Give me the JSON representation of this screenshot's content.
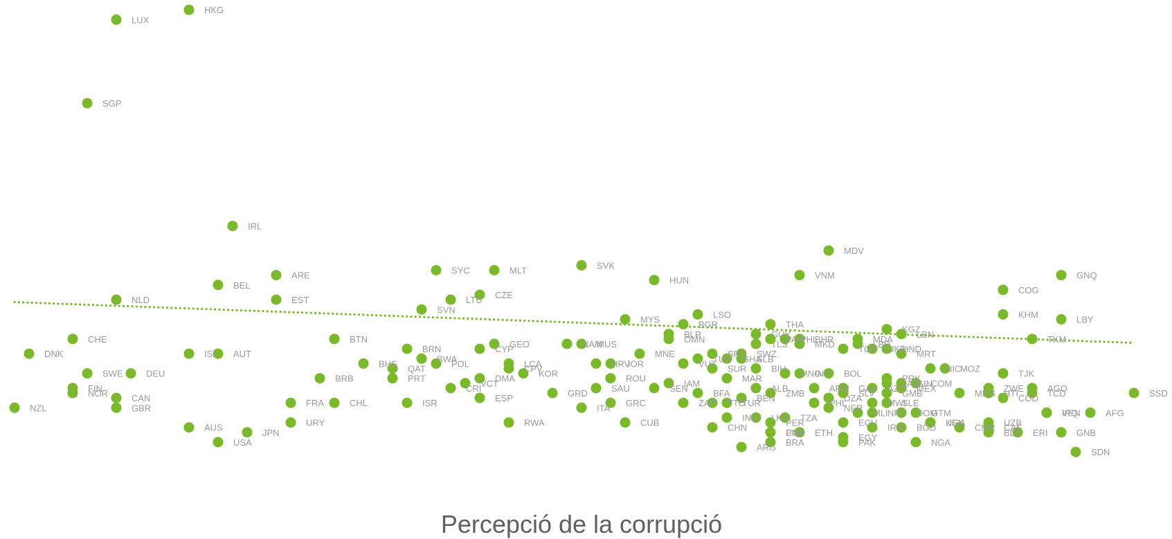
{
  "chart_data": {
    "type": "scatter",
    "xlabel": "Percepció de la corrupció",
    "x_range": [
      0,
      80
    ],
    "y_range": [
      0,
      100
    ],
    "colors": {
      "point": "#7ab929",
      "label": "#9a9a9a",
      "trend": "#7ab929",
      "axis_title": "#606060"
    },
    "trendline": {
      "style": "dotted",
      "from": [
        1,
        38.5
      ],
      "to": [
        78,
        30.2
      ]
    },
    "points": [
      {
        "code": "HKG",
        "x": 13,
        "y": 98
      },
      {
        "code": "LUX",
        "x": 8,
        "y": 96
      },
      {
        "code": "SGP",
        "x": 6,
        "y": 79
      },
      {
        "code": "IRL",
        "x": 16,
        "y": 54
      },
      {
        "code": "MDV",
        "x": 57,
        "y": 49
      },
      {
        "code": "ARE",
        "x": 19,
        "y": 44
      },
      {
        "code": "BEL",
        "x": 15,
        "y": 42
      },
      {
        "code": "NLD",
        "x": 8,
        "y": 39
      },
      {
        "code": "EST",
        "x": 19,
        "y": 39
      },
      {
        "code": "SYC",
        "x": 30,
        "y": 45
      },
      {
        "code": "MLT",
        "x": 34,
        "y": 45
      },
      {
        "code": "SVK",
        "x": 40,
        "y": 46
      },
      {
        "code": "VNM",
        "x": 55,
        "y": 44
      },
      {
        "code": "GNQ",
        "x": 73,
        "y": 44
      },
      {
        "code": "HUN",
        "x": 45,
        "y": 43
      },
      {
        "code": "COG",
        "x": 69,
        "y": 41
      },
      {
        "code": "CZE",
        "x": 33,
        "y": 40
      },
      {
        "code": "LTU",
        "x": 31,
        "y": 39
      },
      {
        "code": "SVN",
        "x": 29,
        "y": 37
      },
      {
        "code": "LSO",
        "x": 48,
        "y": 36
      },
      {
        "code": "KHM",
        "x": 69,
        "y": 36
      },
      {
        "code": "MYS",
        "x": 43,
        "y": 35
      },
      {
        "code": "LBY",
        "x": 73,
        "y": 35
      },
      {
        "code": "BGR",
        "x": 47,
        "y": 34
      },
      {
        "code": "THA",
        "x": 53,
        "y": 34
      },
      {
        "code": "KGZ",
        "x": 61,
        "y": 33
      },
      {
        "code": "LBN",
        "x": 62,
        "y": 32
      },
      {
        "code": "GUY",
        "x": 52,
        "y": 32
      },
      {
        "code": "BLR",
        "x": 46,
        "y": 32
      },
      {
        "code": "TKM",
        "x": 71,
        "y": 31
      },
      {
        "code": "CHE",
        "x": 5,
        "y": 31
      },
      {
        "code": "BTN",
        "x": 23,
        "y": 31
      },
      {
        "code": "OMN",
        "x": 46,
        "y": 31
      },
      {
        "code": "PAN",
        "x": 53,
        "y": 31
      },
      {
        "code": "PHL",
        "x": 54,
        "y": 31
      },
      {
        "code": "BHR",
        "x": 55,
        "y": 31
      },
      {
        "code": "MDA",
        "x": 59,
        "y": 31
      },
      {
        "code": "TLS",
        "x": 52,
        "y": 30
      },
      {
        "code": "MKD",
        "x": 55,
        "y": 30
      },
      {
        "code": "LBR",
        "x": 59,
        "y": 30
      },
      {
        "code": "NAM",
        "x": 39,
        "y": 30
      },
      {
        "code": "MUS",
        "x": 40,
        "y": 30
      },
      {
        "code": "GEO",
        "x": 34,
        "y": 30
      },
      {
        "code": "CYP",
        "x": 33,
        "y": 29
      },
      {
        "code": "BRN",
        "x": 28,
        "y": 29
      },
      {
        "code": "UKR",
        "x": 60,
        "y": 29
      },
      {
        "code": "HND",
        "x": 61,
        "y": 29
      },
      {
        "code": "TGO",
        "x": 58,
        "y": 29
      },
      {
        "code": "MNE",
        "x": 44,
        "y": 28
      },
      {
        "code": "SRB",
        "x": 49,
        "y": 28
      },
      {
        "code": "MRT",
        "x": 62,
        "y": 28
      },
      {
        "code": "SWZ",
        "x": 51,
        "y": 28
      },
      {
        "code": "DNK",
        "x": 2,
        "y": 28
      },
      {
        "code": "ISL",
        "x": 13,
        "y": 28
      },
      {
        "code": "AUT",
        "x": 15,
        "y": 28
      },
      {
        "code": "TUN",
        "x": 48,
        "y": 27
      },
      {
        "code": "GHA",
        "x": 50,
        "y": 27
      },
      {
        "code": "SLB",
        "x": 51,
        "y": 27
      },
      {
        "code": "BWA",
        "x": 29,
        "y": 27
      },
      {
        "code": "POL",
        "x": 30,
        "y": 26
      },
      {
        "code": "VUT",
        "x": 47,
        "y": 26
      },
      {
        "code": "JOR",
        "x": 42,
        "y": 26
      },
      {
        "code": "HRV",
        "x": 41,
        "y": 26
      },
      {
        "code": "LCA",
        "x": 35,
        "y": 26
      },
      {
        "code": "BHS",
        "x": 25,
        "y": 26
      },
      {
        "code": "NIC",
        "x": 64,
        "y": 25
      },
      {
        "code": "MOZ",
        "x": 65,
        "y": 25
      },
      {
        "code": "QAT",
        "x": 27,
        "y": 25
      },
      {
        "code": "CPV",
        "x": 35,
        "y": 25
      },
      {
        "code": "SUR",
        "x": 49,
        "y": 25
      },
      {
        "code": "BIH",
        "x": 52,
        "y": 25
      },
      {
        "code": "MNG",
        "x": 54,
        "y": 24
      },
      {
        "code": "INO",
        "x": 55,
        "y": 24
      },
      {
        "code": "SWE",
        "x": 6,
        "y": 24
      },
      {
        "code": "DEU",
        "x": 9,
        "y": 24
      },
      {
        "code": "TJK",
        "x": 69,
        "y": 24
      },
      {
        "code": "KOR",
        "x": 36,
        "y": 24
      },
      {
        "code": "BOL",
        "x": 57,
        "y": 24
      },
      {
        "code": "ROU",
        "x": 42,
        "y": 23
      },
      {
        "code": "PRY",
        "x": 61,
        "y": 23
      },
      {
        "code": "BRB",
        "x": 22,
        "y": 23
      },
      {
        "code": "PRT",
        "x": 27,
        "y": 23
      },
      {
        "code": "DMA",
        "x": 33,
        "y": 23
      },
      {
        "code": "MAR",
        "x": 50,
        "y": 23
      },
      {
        "code": "LAO",
        "x": 61,
        "y": 22
      },
      {
        "code": "COM",
        "x": 63,
        "y": 22
      },
      {
        "code": "GIN",
        "x": 62,
        "y": 22
      },
      {
        "code": "VCT",
        "x": 32,
        "y": 22
      },
      {
        "code": "IAM",
        "x": 46,
        "y": 22
      },
      {
        "code": "FIN",
        "x": 5,
        "y": 21
      },
      {
        "code": "ZWE",
        "x": 68,
        "y": 21
      },
      {
        "code": "AGO",
        "x": 71,
        "y": 21
      },
      {
        "code": "CRI",
        "x": 31,
        "y": 21
      },
      {
        "code": "SAU",
        "x": 41,
        "y": 21
      },
      {
        "code": "SEN",
        "x": 45,
        "y": 21
      },
      {
        "code": "ALB",
        "x": 52,
        "y": 21
      },
      {
        "code": "ZMB",
        "x": 53,
        "y": 20
      },
      {
        "code": "ARM",
        "x": 56,
        "y": 21
      },
      {
        "code": "GAB",
        "x": 58,
        "y": 21
      },
      {
        "code": "AZE",
        "x": 60,
        "y": 21
      },
      {
        "code": "GMB",
        "x": 61,
        "y": 20
      },
      {
        "code": "MEX",
        "x": 62,
        "y": 21
      },
      {
        "code": "MDG",
        "x": 66,
        "y": 20
      },
      {
        "code": "HTI",
        "x": 68,
        "y": 20
      },
      {
        "code": "TCD",
        "x": 71,
        "y": 20
      },
      {
        "code": "SSD",
        "x": 78,
        "y": 20
      },
      {
        "code": "NOR",
        "x": 5,
        "y": 20
      },
      {
        "code": "GRD",
        "x": 38,
        "y": 20
      },
      {
        "code": "BFA",
        "x": 48,
        "y": 20
      },
      {
        "code": "SLV",
        "x": 58,
        "y": 20
      },
      {
        "code": "CAN",
        "x": 8,
        "y": 19
      },
      {
        "code": "COD",
        "x": 69,
        "y": 19
      },
      {
        "code": "ESP",
        "x": 33,
        "y": 19
      },
      {
        "code": "ZAF",
        "x": 47,
        "y": 18
      },
      {
        "code": "BEN",
        "x": 51,
        "y": 19
      },
      {
        "code": "DZA",
        "x": 57,
        "y": 19
      },
      {
        "code": "FRA",
        "x": 20,
        "y": 18
      },
      {
        "code": "CHL",
        "x": 23,
        "y": 18
      },
      {
        "code": "ISR",
        "x": 28,
        "y": 18
      },
      {
        "code": "GRC",
        "x": 42,
        "y": 18
      },
      {
        "code": "TTO",
        "x": 49,
        "y": 18
      },
      {
        "code": "TUR",
        "x": 50,
        "y": 18
      },
      {
        "code": "PHL",
        "x": 56,
        "y": 18
      },
      {
        "code": "MWI",
        "x": 60,
        "y": 18
      },
      {
        "code": "SLE",
        "x": 61,
        "y": 18
      },
      {
        "code": "NZL",
        "x": 1,
        "y": 17
      },
      {
        "code": "GBR",
        "x": 8,
        "y": 17
      },
      {
        "code": "ITA",
        "x": 40,
        "y": 17
      },
      {
        "code": "NER",
        "x": 57,
        "y": 17
      },
      {
        "code": "NPL",
        "x": 60,
        "y": 16
      },
      {
        "code": "DOM",
        "x": 62,
        "y": 16
      },
      {
        "code": "GTM",
        "x": 63,
        "y": 16
      },
      {
        "code": "AFG",
        "x": 75,
        "y": 16
      },
      {
        "code": "VEN",
        "x": 72,
        "y": 16
      },
      {
        "code": "MLI",
        "x": 59,
        "y": 16
      },
      {
        "code": "IRQ",
        "x": 72,
        "y": 16
      },
      {
        "code": "IND",
        "x": 50,
        "y": 15
      },
      {
        "code": "LKA",
        "x": 52,
        "y": 15
      },
      {
        "code": "TZA",
        "x": 54,
        "y": 15
      },
      {
        "code": "UGA",
        "x": 64,
        "y": 14
      },
      {
        "code": "URY",
        "x": 20,
        "y": 14
      },
      {
        "code": "RWA",
        "x": 35,
        "y": 14
      },
      {
        "code": "CUB",
        "x": 43,
        "y": 14
      },
      {
        "code": "PER",
        "x": 53,
        "y": 14
      },
      {
        "code": "ECU",
        "x": 58,
        "y": 14
      },
      {
        "code": "KEN",
        "x": 64,
        "y": 14
      },
      {
        "code": "UZB",
        "x": 68,
        "y": 14
      },
      {
        "code": "AUS",
        "x": 13,
        "y": 13
      },
      {
        "code": "CHN",
        "x": 49,
        "y": 13
      },
      {
        "code": "IRN",
        "x": 60,
        "y": 13
      },
      {
        "code": "BGD",
        "x": 62,
        "y": 13
      },
      {
        "code": "CMR",
        "x": 66,
        "y": 13
      },
      {
        "code": "PNG",
        "x": 53,
        "y": 12
      },
      {
        "code": "CAF",
        "x": 68,
        "y": 13
      },
      {
        "code": "ERI",
        "x": 70,
        "y": 12
      },
      {
        "code": "BDI",
        "x": 68,
        "y": 12
      },
      {
        "code": "GNB",
        "x": 73,
        "y": 12
      },
      {
        "code": "JPN",
        "x": 17,
        "y": 12
      },
      {
        "code": "COL",
        "x": 53,
        "y": 12
      },
      {
        "code": "ETH",
        "x": 55,
        "y": 12
      },
      {
        "code": "EGY",
        "x": 58,
        "y": 11
      },
      {
        "code": "NGA",
        "x": 63,
        "y": 10
      },
      {
        "code": "USA",
        "x": 15,
        "y": 10
      },
      {
        "code": "BRA",
        "x": 53,
        "y": 10
      },
      {
        "code": "PAK",
        "x": 58,
        "y": 10
      },
      {
        "code": "ARG",
        "x": 51,
        "y": 9
      },
      {
        "code": "SDN",
        "x": 74,
        "y": 8
      }
    ]
  }
}
